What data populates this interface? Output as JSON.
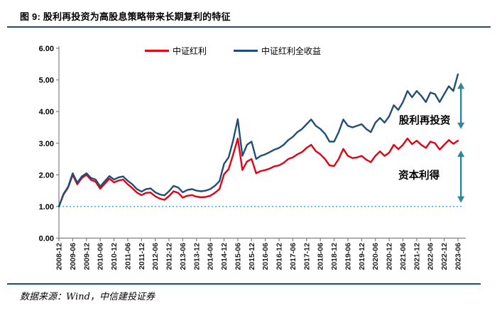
{
  "header": {
    "title": "图 9:  股利再投资为高股息策略带来长期复利的特征"
  },
  "footer": {
    "source": "数据来源：Wind，中信建投证券"
  },
  "chart_data": {
    "type": "line",
    "title": "股利再投资为高股息策略带来长期复利的特征",
    "grid": false,
    "legend_position": "top",
    "ylim": [
      0,
      6
    ],
    "y_ticks": [
      0,
      1,
      2,
      3,
      4,
      5,
      6
    ],
    "y_tick_labels": [
      "0.00",
      "1.00",
      "2.00",
      "3.00",
      "4.00",
      "5.00",
      "6.00"
    ],
    "x_tick_labels": [
      "2008-12",
      "2009-06",
      "2009-12",
      "2010-06",
      "2010-12",
      "2011-06",
      "2011-12",
      "2012-06",
      "2012-12",
      "2013-06",
      "2013-12",
      "2014-06",
      "2014-12",
      "2015-06",
      "2015-12",
      "2016-06",
      "2016-12",
      "2017-06",
      "2017-12",
      "2018-06",
      "2018-12",
      "2019-06",
      "2019-12",
      "2020-06",
      "2020-12",
      "2021-06",
      "2021-12",
      "2022-06",
      "2022-12",
      "2023-06"
    ],
    "x": [
      "2008-12",
      "2009-02",
      "2009-04",
      "2009-06",
      "2009-08",
      "2009-10",
      "2009-12",
      "2010-02",
      "2010-04",
      "2010-06",
      "2010-08",
      "2010-10",
      "2010-12",
      "2011-02",
      "2011-04",
      "2011-06",
      "2011-08",
      "2011-10",
      "2011-12",
      "2012-02",
      "2012-04",
      "2012-06",
      "2012-08",
      "2012-10",
      "2012-12",
      "2013-02",
      "2013-04",
      "2013-06",
      "2013-08",
      "2013-10",
      "2013-12",
      "2014-02",
      "2014-04",
      "2014-06",
      "2014-08",
      "2014-10",
      "2014-12",
      "2015-02",
      "2015-04",
      "2015-06",
      "2015-08",
      "2015-10",
      "2015-12",
      "2016-02",
      "2016-04",
      "2016-06",
      "2016-08",
      "2016-10",
      "2016-12",
      "2017-02",
      "2017-04",
      "2017-06",
      "2017-08",
      "2017-10",
      "2017-12",
      "2018-02",
      "2018-04",
      "2018-06",
      "2018-08",
      "2018-10",
      "2018-12",
      "2019-02",
      "2019-04",
      "2019-06",
      "2019-08",
      "2019-10",
      "2019-12",
      "2020-02",
      "2020-04",
      "2020-06",
      "2020-08",
      "2020-10",
      "2020-12",
      "2021-02",
      "2021-04",
      "2021-06",
      "2021-08",
      "2021-10",
      "2021-12",
      "2022-02",
      "2022-04",
      "2022-06",
      "2022-08",
      "2022-10",
      "2022-12",
      "2023-02",
      "2023-04",
      "2023-06"
    ],
    "series": [
      {
        "name": "中证红利",
        "color": "#E60012",
        "values": [
          1.0,
          1.38,
          1.6,
          2.0,
          1.7,
          1.9,
          2.0,
          1.84,
          1.78,
          1.56,
          1.72,
          1.88,
          1.76,
          1.82,
          1.85,
          1.7,
          1.58,
          1.44,
          1.36,
          1.43,
          1.44,
          1.32,
          1.25,
          1.21,
          1.33,
          1.48,
          1.43,
          1.28,
          1.34,
          1.36,
          1.31,
          1.29,
          1.3,
          1.34,
          1.43,
          1.55,
          2.02,
          2.18,
          2.65,
          3.15,
          2.15,
          2.42,
          2.5,
          2.05,
          2.12,
          2.15,
          2.2,
          2.27,
          2.3,
          2.38,
          2.5,
          2.55,
          2.65,
          2.72,
          2.85,
          2.95,
          2.75,
          2.65,
          2.5,
          2.3,
          2.28,
          2.5,
          2.82,
          2.6,
          2.53,
          2.55,
          2.6,
          2.48,
          2.4,
          2.6,
          2.74,
          2.6,
          2.7,
          2.95,
          2.81,
          2.95,
          3.15,
          2.97,
          3.08,
          2.95,
          2.85,
          3.05,
          3.0,
          2.8,
          2.95,
          3.1,
          2.98,
          3.08
        ]
      },
      {
        "name": "中证红利全收益",
        "color": "#1F4E79",
        "values": [
          1.0,
          1.4,
          1.62,
          2.05,
          1.75,
          1.95,
          2.05,
          1.9,
          1.85,
          1.63,
          1.8,
          1.96,
          1.85,
          1.92,
          1.95,
          1.81,
          1.7,
          1.55,
          1.47,
          1.55,
          1.57,
          1.45,
          1.38,
          1.35,
          1.48,
          1.65,
          1.6,
          1.45,
          1.52,
          1.55,
          1.5,
          1.48,
          1.5,
          1.55,
          1.65,
          1.8,
          2.35,
          2.55,
          3.1,
          3.76,
          2.6,
          2.95,
          3.05,
          2.5,
          2.6,
          2.65,
          2.72,
          2.8,
          2.85,
          2.95,
          3.1,
          3.2,
          3.35,
          3.45,
          3.6,
          3.75,
          3.55,
          3.45,
          3.3,
          3.05,
          3.05,
          3.35,
          3.75,
          3.55,
          3.5,
          3.55,
          3.6,
          3.45,
          3.35,
          3.65,
          3.8,
          3.65,
          3.85,
          4.2,
          4.05,
          4.3,
          4.65,
          4.45,
          4.65,
          4.5,
          4.3,
          4.6,
          4.55,
          4.3,
          4.55,
          4.8,
          4.65,
          5.18
        ]
      }
    ],
    "reference_line": {
      "value": 1.0,
      "color": "#45B8E8",
      "style": "dotted"
    },
    "annotations": [
      {
        "text": "股利再投资",
        "month": 159.5,
        "value": 3.72
      },
      {
        "text": "资本利得",
        "month": 157.0,
        "value": 1.98
      }
    ],
    "arrows": [
      {
        "month": 175.3,
        "from_value": 4.92,
        "to_value": 3.45,
        "color": "#31859C"
      },
      {
        "month": 175.3,
        "from_value": 2.77,
        "to_value": 1.12,
        "color": "#31859C"
      }
    ],
    "axis_color": "#808080",
    "tick_label_color": "#1a1a1a"
  }
}
